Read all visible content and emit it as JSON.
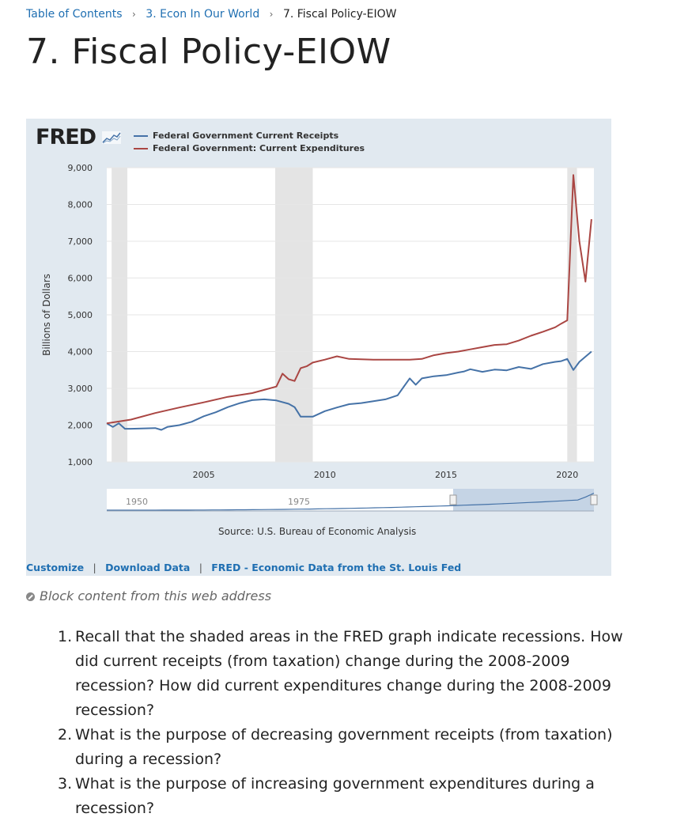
{
  "breadcrumb": {
    "items": [
      "Table of Contents",
      "3. Econ In Our World",
      "7. Fiscal Policy-EIOW"
    ],
    "separator": "›"
  },
  "page": {
    "title": "7. Fiscal Policy-EIOW"
  },
  "fred": {
    "logo_text": "FRED",
    "source": "Source: U.S. Bureau of Economic Analysis",
    "links": [
      "Customize",
      "Download Data",
      "FRED - Economic Data from the St. Louis Fed"
    ],
    "link_separator": "|"
  },
  "block_notice": "Block content from this web address",
  "questions": [
    {
      "num": "1.",
      "text": "Recall that the shaded areas in the FRED graph indicate recessions. How did current receipts (from taxation) change during the 2008-2009 recession? How did current expenditures change during the 2008-2009 recession?"
    },
    {
      "num": "2.",
      "text": "What is the purpose of decreasing government receipts (from taxation) during a recession?"
    },
    {
      "num": "3.",
      "text": "What is the purpose of increasing government expenditures during a recession?"
    }
  ],
  "chart_data": {
    "type": "line",
    "title": "",
    "xlabel": "",
    "ylabel": "Billions of Dollars",
    "xlim": [
      2001,
      2021.1
    ],
    "ylim": [
      1000,
      9000
    ],
    "yticks": [
      1000,
      2000,
      3000,
      4000,
      5000,
      6000,
      7000,
      8000,
      9000
    ],
    "ytick_labels": [
      "1,000",
      "2,000",
      "3,000",
      "4,000",
      "5,000",
      "6,000",
      "7,000",
      "8,000",
      "9,000"
    ],
    "xticks": [
      2005,
      2010,
      2015,
      2020
    ],
    "xtick_labels": [
      "2005",
      "2010",
      "2015",
      "2020"
    ],
    "grid": true,
    "legend_position": "top-left",
    "recessions": [
      [
        2001.2,
        2001.85
      ],
      [
        2007.95,
        2009.5
      ],
      [
        2020.0,
        2020.4
      ]
    ],
    "series": [
      {
        "name": "Federal Government Current Receipts",
        "color": "#4572a7",
        "x": [
          2001.0,
          2001.25,
          2001.5,
          2001.75,
          2002.0,
          2003.0,
          2003.25,
          2003.5,
          2004.0,
          2004.5,
          2005.0,
          2005.5,
          2006.0,
          2006.5,
          2007.0,
          2007.5,
          2008.0,
          2008.5,
          2008.75,
          2009.0,
          2009.5,
          2010.0,
          2010.5,
          2011.0,
          2011.5,
          2012.0,
          2012.5,
          2013.0,
          2013.5,
          2013.75,
          2014.0,
          2014.5,
          2015.0,
          2015.5,
          2015.75,
          2016.0,
          2016.5,
          2017.0,
          2017.5,
          2018.0,
          2018.5,
          2019.0,
          2019.5,
          2019.75,
          2020.0,
          2020.25,
          2020.5,
          2021.0
        ],
        "values": [
          2050,
          1950,
          2050,
          1900,
          1900,
          1920,
          1870,
          1950,
          2000,
          2090,
          2240,
          2350,
          2490,
          2600,
          2680,
          2700,
          2670,
          2580,
          2490,
          2230,
          2230,
          2380,
          2480,
          2570,
          2600,
          2650,
          2700,
          2810,
          3270,
          3100,
          3270,
          3330,
          3360,
          3430,
          3460,
          3520,
          3450,
          3510,
          3490,
          3580,
          3530,
          3660,
          3720,
          3740,
          3800,
          3500,
          3720,
          4000
        ]
      },
      {
        "name": "Federal Government: Current Expenditures",
        "color": "#aa4643",
        "x": [
          2001.0,
          2002.0,
          2003.0,
          2004.0,
          2005.0,
          2006.0,
          2007.0,
          2007.5,
          2008.0,
          2008.25,
          2008.5,
          2008.75,
          2009.0,
          2009.25,
          2009.5,
          2010.0,
          2010.5,
          2011.0,
          2011.5,
          2012.0,
          2012.5,
          2013.0,
          2013.5,
          2014.0,
          2014.5,
          2015.0,
          2015.5,
          2016.0,
          2016.5,
          2017.0,
          2017.5,
          2018.0,
          2018.5,
          2019.0,
          2019.5,
          2019.75,
          2020.0,
          2020.25,
          2020.5,
          2020.75,
          2021.0
        ],
        "values": [
          2050,
          2150,
          2330,
          2480,
          2620,
          2770,
          2870,
          2960,
          3050,
          3400,
          3250,
          3200,
          3550,
          3600,
          3700,
          3780,
          3870,
          3800,
          3790,
          3780,
          3780,
          3780,
          3780,
          3800,
          3900,
          3960,
          4000,
          4060,
          4120,
          4180,
          4200,
          4300,
          4430,
          4540,
          4660,
          4760,
          4850,
          8800,
          7000,
          5900,
          7600
        ]
      }
    ],
    "range_selector": {
      "labels": [
        "1950",
        "1975"
      ]
    }
  }
}
